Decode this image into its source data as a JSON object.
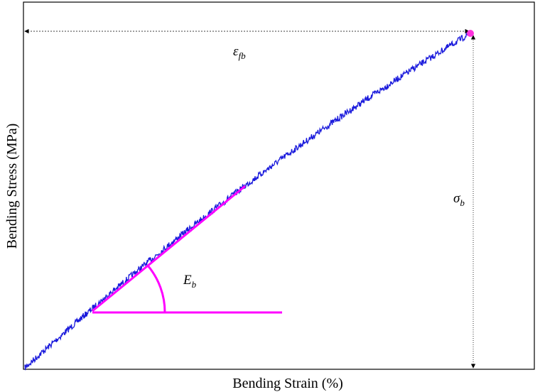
{
  "axes": {
    "y_label": "Bending Stress (MPa)",
    "x_label": "Bending Strain (%)"
  },
  "annotations": {
    "strain_at_break": {
      "symbol": "ε",
      "subscript": "fb"
    },
    "strength": {
      "symbol": "σ",
      "subscript": "b"
    },
    "modulus": {
      "symbol": "E",
      "subscript": "b"
    }
  }
}
